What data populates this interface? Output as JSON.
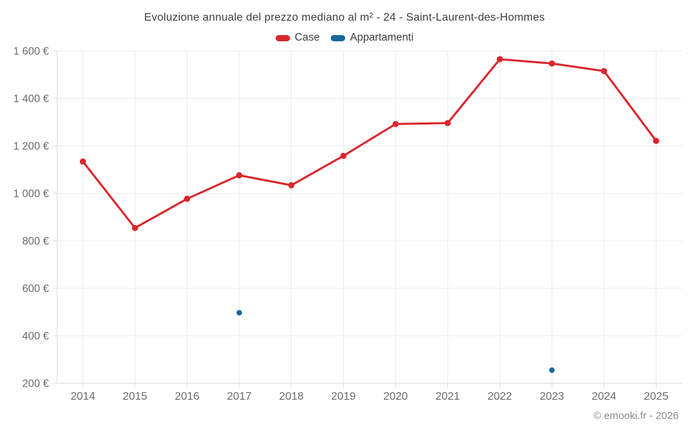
{
  "chart_data": {
    "type": "line",
    "title": "Evoluzione annuale del prezzo mediano al m² - 24 - Saint-Laurent-des-Hommes",
    "x": [
      2014,
      2015,
      2016,
      2017,
      2018,
      2019,
      2020,
      2021,
      2022,
      2023,
      2024,
      2025
    ],
    "series": [
      {
        "name": "Case",
        "color": "#d9262c",
        "marker_radius": 4.5,
        "values": [
          1134,
          854,
          977,
          1076,
          1034,
          1158,
          1292,
          1296,
          1565,
          1547,
          1515,
          1221
        ]
      },
      {
        "name": "Appartamenti",
        "color": "#15699e",
        "marker_radius": 4,
        "values": [
          null,
          null,
          null,
          497,
          null,
          null,
          null,
          null,
          null,
          255,
          null,
          null
        ]
      }
    ],
    "xlabel": "",
    "ylabel": "",
    "ylim": [
      200,
      1600
    ],
    "ytick_step": 200,
    "ytick_suffix": " €",
    "ytick_labels": [
      "200 €",
      "400 €",
      "600 €",
      "800 €",
      "1 000 €",
      "1 200 €",
      "1 400 €",
      "1 600 €"
    ],
    "grid": true,
    "legend_position": "top"
  },
  "legend": {
    "items": [
      {
        "label": "Case",
        "color": "#d9262c"
      },
      {
        "label": "Appartamenti",
        "color": "#15699e"
      }
    ]
  },
  "footer": {
    "attribution": "© emooki.fr - 2026"
  },
  "colors": {
    "grid": "#ebebeb",
    "axis": "#d9d9d9",
    "tick_text": "#6b6b6b",
    "title_text": "#3c3c3c"
  }
}
